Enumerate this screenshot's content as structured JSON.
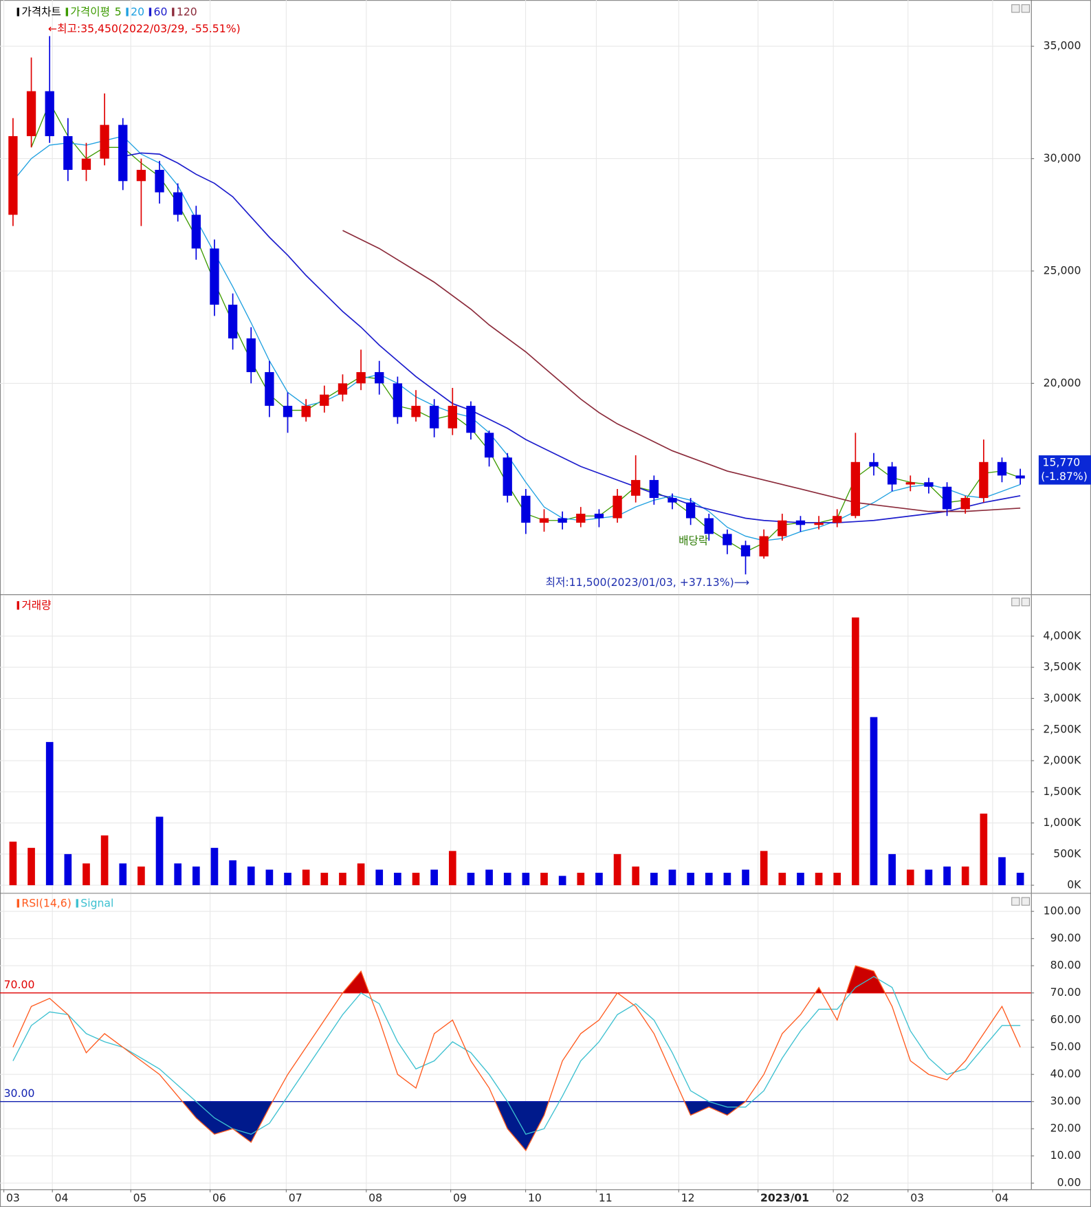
{
  "chart_data": [
    {
      "type": "candlestick",
      "title": "가격차트",
      "ma_title": "가격이평",
      "up_color": "#e00000",
      "down_color": "#0000e0",
      "open": [
        27500,
        31000,
        33000,
        31000,
        29500,
        30000,
        31500,
        29000,
        29500,
        28500,
        27500,
        26000,
        23500,
        22000,
        20500,
        19000,
        18500,
        19000,
        19500,
        20000,
        20500,
        20000,
        18500,
        19000,
        18000,
        19000,
        17800,
        16700,
        15000,
        13800,
        14000,
        13800,
        14200,
        14000,
        15000,
        15700,
        14900,
        14700,
        14000,
        13300,
        12800,
        12300,
        13200,
        13900,
        13700,
        13800,
        14100,
        16500,
        16300,
        15500,
        15600,
        15400,
        14400,
        14900,
        16500,
        15900
      ],
      "high": [
        31800,
        34500,
        35450,
        31800,
        30700,
        32900,
        31800,
        30000,
        29900,
        28900,
        27900,
        26400,
        24000,
        22500,
        21000,
        19600,
        19300,
        19900,
        20400,
        21500,
        21000,
        20300,
        19700,
        19300,
        19800,
        19200,
        17900,
        16900,
        15300,
        14400,
        14300,
        14500,
        14400,
        15300,
        16800,
        15900,
        15100,
        14900,
        14200,
        13500,
        13000,
        13500,
        14200,
        14100,
        14100,
        14400,
        17800,
        16900,
        16500,
        15900,
        15800,
        15600,
        15000,
        17500,
        16700,
        16200
      ],
      "low": [
        27000,
        30500,
        30700,
        29000,
        29000,
        29700,
        28600,
        27000,
        28000,
        27200,
        25500,
        23000,
        21500,
        20000,
        18500,
        17800,
        18300,
        18700,
        19200,
        19700,
        19500,
        18200,
        18300,
        17600,
        17700,
        17500,
        16300,
        14700,
        13300,
        13400,
        13500,
        13600,
        13600,
        13800,
        14700,
        14600,
        14400,
        13700,
        13000,
        12400,
        11500,
        12200,
        13000,
        13400,
        13500,
        13600,
        14000,
        15900,
        15200,
        15200,
        15100,
        14100,
        14200,
        14700,
        15600,
        15500
      ],
      "close": [
        31000,
        33000,
        31000,
        29500,
        30000,
        31500,
        29000,
        29500,
        28500,
        27500,
        26000,
        23500,
        22000,
        20500,
        19000,
        18500,
        19000,
        19500,
        20000,
        20500,
        20000,
        18500,
        19000,
        18000,
        19000,
        17800,
        16700,
        15000,
        13800,
        14000,
        13800,
        14200,
        14000,
        15000,
        15700,
        14900,
        14700,
        14000,
        13300,
        12800,
        12300,
        13200,
        13900,
        13700,
        13800,
        14100,
        16500,
        16300,
        15500,
        15600,
        15400,
        14400,
        14900,
        16500,
        15900,
        15770
      ],
      "series": [
        {
          "name": "5",
          "color": "#3c9a00",
          "values": [
            null,
            30500,
            32500,
            31000,
            30000,
            30500,
            30500,
            29800,
            29200,
            28000,
            26500,
            24500,
            22700,
            21000,
            19500,
            18800,
            18800,
            19300,
            19800,
            20300,
            20200,
            19000,
            18800,
            18400,
            18600,
            18000,
            17000,
            15500,
            14200,
            13900,
            13900,
            14100,
            14100,
            14700,
            15400,
            15200,
            14800,
            14200,
            13500,
            13000,
            12500,
            12900,
            13700,
            13800,
            13800,
            14000,
            15800,
            16400,
            15800,
            15600,
            15500,
            14700,
            14800,
            16000,
            16100,
            15800
          ]
        },
        {
          "name": "20",
          "color": "#1fa0e0",
          "values": [
            29000,
            30000,
            30600,
            30700,
            30600,
            30800,
            31000,
            30200,
            29800,
            28800,
            27300,
            25800,
            24300,
            22700,
            21000,
            19600,
            19000,
            19200,
            19600,
            20200,
            20400,
            20000,
            19400,
            19000,
            18700,
            18500,
            17800,
            16800,
            15600,
            14500,
            14000,
            13900,
            14000,
            14100,
            14500,
            14800,
            15000,
            14800,
            14300,
            13600,
            13200,
            13000,
            13100,
            13400,
            13600,
            13900,
            14300,
            14700,
            15200,
            15400,
            15500,
            15300,
            15000,
            14900,
            15200,
            15500
          ]
        },
        {
          "name": "60",
          "color": "#1c1ccc",
          "values": [
            null,
            null,
            null,
            null,
            null,
            null,
            30100,
            30250,
            30200,
            29800,
            29300,
            28900,
            28300,
            27400,
            26500,
            25700,
            24800,
            24000,
            23200,
            22500,
            21700,
            21000,
            20300,
            19700,
            19100,
            18800,
            18400,
            18000,
            17500,
            17100,
            16700,
            16300,
            16000,
            15700,
            15400,
            15100,
            14900,
            14600,
            14400,
            14200,
            14000,
            13900,
            13850,
            13800,
            13800,
            13800,
            13850,
            13900,
            14000,
            14100,
            14200,
            14300,
            14500,
            14700,
            14850,
            15000
          ]
        },
        {
          "name": "120",
          "color": "#8b2a3a",
          "values": [
            null,
            null,
            null,
            null,
            null,
            null,
            null,
            null,
            null,
            null,
            null,
            null,
            null,
            null,
            null,
            null,
            null,
            null,
            26800,
            26400,
            26000,
            25500,
            25000,
            24500,
            23900,
            23300,
            22600,
            22000,
            21400,
            20700,
            20000,
            19300,
            18700,
            18200,
            17800,
            17400,
            17000,
            16700,
            16400,
            16100,
            15900,
            15700,
            15500,
            15300,
            15100,
            14900,
            14700,
            14600,
            14500,
            14400,
            14300,
            14300,
            14300,
            14350,
            14400,
            14450
          ]
        }
      ],
      "ylim": [
        10616,
        36884
      ],
      "yticks": [
        {
          "value": 20000,
          "label": "20,000"
        },
        {
          "value": 25000,
          "label": "25,000"
        },
        {
          "value": 30000,
          "label": "30,000"
        },
        {
          "value": 35000,
          "label": "35,000"
        }
      ],
      "grid": true,
      "annotations": {
        "high": "←최고:35,450(2022/03/29, -55.51%)",
        "low": "최저:11,500(2023/01/03, +37.13%)⟶",
        "ex_dividend": "배당락"
      },
      "last_price": {
        "label": "15,770",
        "change": "(-1.87%)",
        "color": "#0a28d6"
      }
    },
    {
      "type": "bar",
      "title": "거래량",
      "title_color": "#e00000",
      "values": [
        700,
        600,
        2300,
        500,
        350,
        800,
        350,
        300,
        1100,
        350,
        300,
        600,
        400,
        300,
        250,
        200,
        250,
        200,
        200,
        350,
        250,
        200,
        200,
        250,
        550,
        200,
        250,
        200,
        200,
        200,
        150,
        200,
        200,
        500,
        300,
        200,
        250,
        200,
        200,
        200,
        250,
        550,
        200,
        200,
        200,
        200,
        4300,
        2700,
        500,
        250,
        250,
        300,
        300,
        1150,
        450,
        200
      ],
      "ylim": [
        0,
        4450
      ],
      "yticks": [
        {
          "value": 0,
          "label": "0K"
        },
        {
          "value": 500,
          "label": "500K"
        },
        {
          "value": 1000,
          "label": "1,000K"
        },
        {
          "value": 1500,
          "label": "1,500K"
        },
        {
          "value": 2000,
          "label": "2,000K"
        },
        {
          "value": 2500,
          "label": "2,500K"
        },
        {
          "value": 3000,
          "label": "3,000K"
        },
        {
          "value": 3500,
          "label": "3,500K"
        },
        {
          "value": 4000,
          "label": "4,000K"
        }
      ],
      "grid": true
    },
    {
      "type": "line",
      "series": [
        {
          "name": "RSI(14,6)",
          "color": "#ff5a1e",
          "values": [
            50,
            65,
            68,
            62,
            48,
            55,
            50,
            45,
            40,
            32,
            24,
            18,
            20,
            15,
            28,
            40,
            50,
            60,
            70,
            78,
            60,
            40,
            35,
            55,
            60,
            45,
            35,
            20,
            12,
            25,
            45,
            55,
            60,
            70,
            65,
            55,
            40,
            25,
            28,
            25,
            30,
            40,
            55,
            62,
            72,
            60,
            80,
            78,
            65,
            45,
            40,
            38,
            45,
            55,
            65,
            50
          ]
        },
        {
          "name": "Signal",
          "color": "#3cc0d0",
          "values": [
            45,
            58,
            63,
            62,
            55,
            52,
            50,
            46,
            42,
            36,
            30,
            24,
            20,
            18,
            22,
            32,
            42,
            52,
            62,
            70,
            66,
            52,
            42,
            45,
            52,
            48,
            40,
            30,
            18,
            20,
            32,
            45,
            52,
            62,
            66,
            60,
            48,
            34,
            30,
            28,
            28,
            34,
            46,
            56,
            64,
            64,
            72,
            76,
            72,
            56,
            46,
            40,
            42,
            50,
            58,
            58
          ]
        }
      ],
      "levels": [
        {
          "value": 70,
          "label": "70.00",
          "color": "#e00000",
          "fill": "#cc0000"
        },
        {
          "value": 30,
          "label": "30.00",
          "color": "#1020b0",
          "fill": "#001a8c"
        }
      ],
      "ylim": [
        0,
        100
      ],
      "yticks": [
        {
          "value": 0,
          "label": "0.00"
        },
        {
          "value": 10,
          "label": "10.00"
        },
        {
          "value": 20,
          "label": "20.00"
        },
        {
          "value": 30,
          "label": "30.00"
        },
        {
          "value": 40,
          "label": "40.00"
        },
        {
          "value": 50,
          "label": "50.00"
        },
        {
          "value": 60,
          "label": "60.00"
        },
        {
          "value": 70,
          "label": "70.00"
        },
        {
          "value": 80,
          "label": "80.00"
        },
        {
          "value": 90,
          "label": "90.00"
        },
        {
          "value": 100,
          "label": "100.00"
        }
      ],
      "grid": true,
      "xlim": [
        0,
        56
      ],
      "xticks": [
        {
          "value": 0,
          "label": "03"
        },
        {
          "value": 2.65,
          "label": "04"
        },
        {
          "value": 6.93,
          "label": "05"
        },
        {
          "value": 11.26,
          "label": "06"
        },
        {
          "value": 15.42,
          "label": "07"
        },
        {
          "value": 19.79,
          "label": "08"
        },
        {
          "value": 24.4,
          "label": "09"
        },
        {
          "value": 28.49,
          "label": "10"
        },
        {
          "value": 32.35,
          "label": "11"
        },
        {
          "value": 36.85,
          "label": "12"
        },
        {
          "value": 41.18,
          "label": "2023/01"
        },
        {
          "value": 45.29,
          "label": "02"
        },
        {
          "value": 49.37,
          "label": "03"
        },
        {
          "value": 53.99,
          "label": "04"
        }
      ]
    }
  ]
}
